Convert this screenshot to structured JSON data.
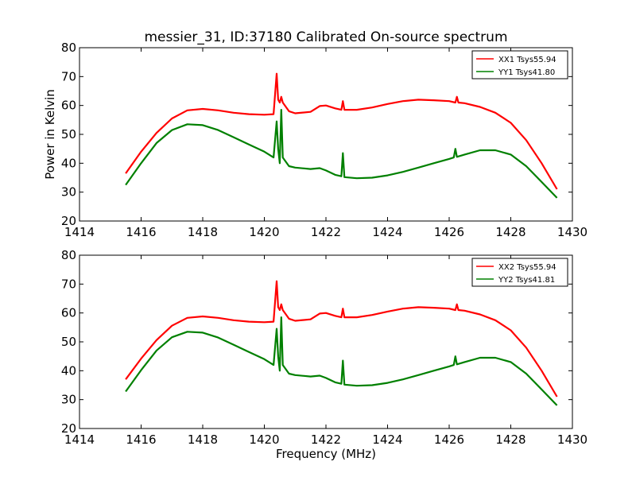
{
  "chart_data": [
    {
      "type": "line",
      "title": "messier_31, ID:37180 Calibrated On-source spectrum",
      "xlabel": "",
      "ylabel": "Power in Kelvin",
      "xlim": [
        1414,
        1430
      ],
      "ylim": [
        20,
        80
      ],
      "xticks": [
        1414,
        1416,
        1418,
        1420,
        1422,
        1424,
        1426,
        1428,
        1430
      ],
      "yticks": [
        20,
        30,
        40,
        50,
        60,
        70,
        80
      ],
      "legend_position": "upper-right",
      "grid": false,
      "series": [
        {
          "name": "XX1 Tsys55.94",
          "color": "#ff0000",
          "x": [
            1415.5,
            1416.0,
            1416.5,
            1417.0,
            1417.5,
            1418.0,
            1418.5,
            1419.0,
            1419.5,
            1420.0,
            1420.3,
            1420.4,
            1420.45,
            1420.5,
            1420.55,
            1420.6,
            1420.8,
            1421.0,
            1421.5,
            1421.8,
            1422.0,
            1422.3,
            1422.5,
            1422.55,
            1422.6,
            1423.0,
            1423.5,
            1424.0,
            1424.5,
            1425.0,
            1425.5,
            1426.0,
            1426.2,
            1426.25,
            1426.3,
            1426.5,
            1427.0,
            1427.5,
            1428.0,
            1428.5,
            1429.0,
            1429.5
          ],
          "y": [
            36.5,
            44.0,
            50.5,
            55.5,
            58.3,
            58.8,
            58.3,
            57.5,
            57.0,
            56.8,
            57.0,
            71.0,
            62.0,
            61.0,
            63.0,
            61.0,
            58.0,
            57.3,
            57.8,
            59.8,
            60.0,
            59.0,
            58.5,
            61.5,
            58.5,
            58.5,
            59.3,
            60.5,
            61.5,
            62.0,
            61.8,
            61.5,
            61.0,
            63.0,
            61.0,
            60.8,
            59.5,
            57.5,
            54.0,
            48.0,
            40.0,
            31.0
          ]
        },
        {
          "name": "YY1 Tsys41.80",
          "color": "#008000",
          "x": [
            1415.5,
            1416.0,
            1416.5,
            1417.0,
            1417.5,
            1418.0,
            1418.5,
            1419.0,
            1419.5,
            1420.0,
            1420.3,
            1420.4,
            1420.45,
            1420.5,
            1420.55,
            1420.6,
            1420.8,
            1421.0,
            1421.5,
            1421.8,
            1422.0,
            1422.3,
            1422.5,
            1422.55,
            1422.6,
            1423.0,
            1423.5,
            1424.0,
            1424.5,
            1425.0,
            1425.5,
            1426.0,
            1426.15,
            1426.2,
            1426.25,
            1426.5,
            1427.0,
            1427.5,
            1428.0,
            1428.5,
            1429.0,
            1429.5
          ],
          "y": [
            32.5,
            40.0,
            47.0,
            51.5,
            53.5,
            53.2,
            51.5,
            49.0,
            46.5,
            44.0,
            42.0,
            54.5,
            45.0,
            40.0,
            58.5,
            42.0,
            39.0,
            38.5,
            38.0,
            38.3,
            37.5,
            36.0,
            35.5,
            43.5,
            35.2,
            34.8,
            35.0,
            35.8,
            37.0,
            38.5,
            40.0,
            41.5,
            42.0,
            45.0,
            42.2,
            43.0,
            44.5,
            44.5,
            43.0,
            39.0,
            33.5,
            28.0
          ]
        }
      ]
    },
    {
      "type": "line",
      "title": "",
      "xlabel": "Frequency (MHz)",
      "ylabel": "",
      "xlim": [
        1414,
        1430
      ],
      "ylim": [
        20,
        80
      ],
      "xticks": [
        1414,
        1416,
        1418,
        1420,
        1422,
        1424,
        1426,
        1428,
        1430
      ],
      "yticks": [
        20,
        30,
        40,
        50,
        60,
        70,
        80
      ],
      "legend_position": "upper-right",
      "grid": false,
      "series": [
        {
          "name": "XX2 Tsys55.94",
          "color": "#ff0000",
          "x": [
            1415.5,
            1416.0,
            1416.5,
            1417.0,
            1417.5,
            1418.0,
            1418.5,
            1419.0,
            1419.5,
            1420.0,
            1420.3,
            1420.4,
            1420.45,
            1420.5,
            1420.55,
            1420.6,
            1420.8,
            1421.0,
            1421.5,
            1421.8,
            1422.0,
            1422.3,
            1422.5,
            1422.55,
            1422.6,
            1423.0,
            1423.5,
            1424.0,
            1424.5,
            1425.0,
            1425.5,
            1426.0,
            1426.2,
            1426.25,
            1426.3,
            1426.5,
            1427.0,
            1427.5,
            1428.0,
            1428.5,
            1429.0,
            1429.5
          ],
          "y": [
            37.0,
            44.2,
            50.6,
            55.6,
            58.3,
            58.8,
            58.3,
            57.5,
            57.0,
            56.8,
            57.0,
            71.0,
            62.0,
            61.0,
            63.0,
            61.0,
            58.0,
            57.3,
            57.8,
            59.8,
            60.0,
            59.0,
            58.5,
            61.5,
            58.5,
            58.5,
            59.3,
            60.5,
            61.5,
            62.0,
            61.8,
            61.5,
            61.0,
            63.0,
            61.0,
            60.8,
            59.5,
            57.5,
            54.0,
            48.0,
            40.0,
            31.0
          ]
        },
        {
          "name": "YY2 Tsys41.81",
          "color": "#008000",
          "x": [
            1415.5,
            1416.0,
            1416.5,
            1417.0,
            1417.5,
            1418.0,
            1418.5,
            1419.0,
            1419.5,
            1420.0,
            1420.3,
            1420.4,
            1420.45,
            1420.5,
            1420.55,
            1420.6,
            1420.8,
            1421.0,
            1421.5,
            1421.8,
            1422.0,
            1422.3,
            1422.5,
            1422.55,
            1422.6,
            1423.0,
            1423.5,
            1424.0,
            1424.5,
            1425.0,
            1425.5,
            1426.0,
            1426.15,
            1426.2,
            1426.25,
            1426.5,
            1427.0,
            1427.5,
            1428.0,
            1428.5,
            1429.0,
            1429.5
          ],
          "y": [
            32.8,
            40.2,
            47.0,
            51.6,
            53.5,
            53.2,
            51.5,
            49.0,
            46.5,
            44.0,
            42.0,
            54.5,
            45.0,
            40.0,
            58.5,
            42.0,
            39.0,
            38.5,
            38.0,
            38.3,
            37.5,
            36.0,
            35.5,
            43.5,
            35.2,
            34.8,
            35.0,
            35.8,
            37.0,
            38.5,
            40.0,
            41.5,
            42.0,
            45.0,
            42.2,
            43.0,
            44.5,
            44.5,
            43.0,
            39.0,
            33.5,
            28.0
          ]
        }
      ]
    }
  ]
}
